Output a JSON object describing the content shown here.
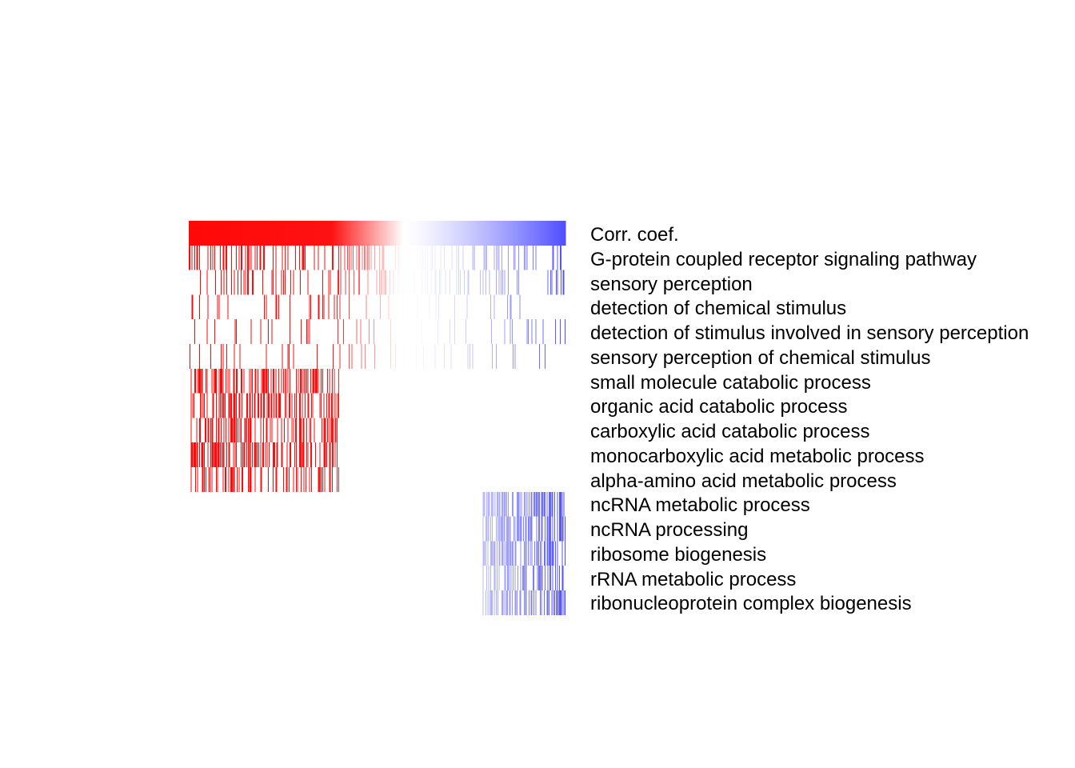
{
  "chart_data": {
    "type": "heatmap",
    "title": "",
    "xlabel": "",
    "ylabel": "",
    "header_row": "Corr. coef.",
    "corr_range": [
      -1,
      1
    ],
    "colors": {
      "positive": "#ff0000",
      "zero": "#ffffff",
      "negative": "#4b4bff"
    },
    "n_genes": 400,
    "rows": [
      {
        "label": "G-protein coupled receptor signaling pathway",
        "segment": "all",
        "density": 0.3,
        "seed": 11
      },
      {
        "label": "sensory perception",
        "segment": "all",
        "density": 0.18,
        "seed": 23
      },
      {
        "label": "detection of chemical stimulus",
        "segment": "all",
        "density": 0.1,
        "seed": 37
      },
      {
        "label": "detection of stimulus involved in sensory perception",
        "segment": "all",
        "density": 0.1,
        "seed": 41
      },
      {
        "label": "sensory perception of chemical stimulus",
        "segment": "all",
        "density": 0.09,
        "seed": 53
      },
      {
        "label": "small molecule catabolic process",
        "segment": "positive",
        "density": 0.55,
        "seed": 61
      },
      {
        "label": "organic acid catabolic process",
        "segment": "positive",
        "density": 0.5,
        "seed": 71
      },
      {
        "label": "carboxylic acid catabolic process",
        "segment": "positive",
        "density": 0.5,
        "seed": 83
      },
      {
        "label": "monocarboxylic acid metabolic process",
        "segment": "positive",
        "density": 0.55,
        "seed": 97
      },
      {
        "label": "alpha-amino acid metabolic process",
        "segment": "positive",
        "density": 0.35,
        "seed": 101
      },
      {
        "label": "ncRNA metabolic process",
        "segment": "negative",
        "density": 0.7,
        "seed": 113
      },
      {
        "label": "ncRNA processing",
        "segment": "negative",
        "density": 0.65,
        "seed": 127
      },
      {
        "label": "ribosome biogenesis",
        "segment": "negative",
        "density": 0.6,
        "seed": 131
      },
      {
        "label": "rRNA metabolic process",
        "segment": "negative",
        "density": 0.55,
        "seed": 139
      },
      {
        "label": "ribonucleoprotein complex biogenesis",
        "segment": "negative",
        "density": 0.55,
        "seed": 149
      }
    ]
  }
}
